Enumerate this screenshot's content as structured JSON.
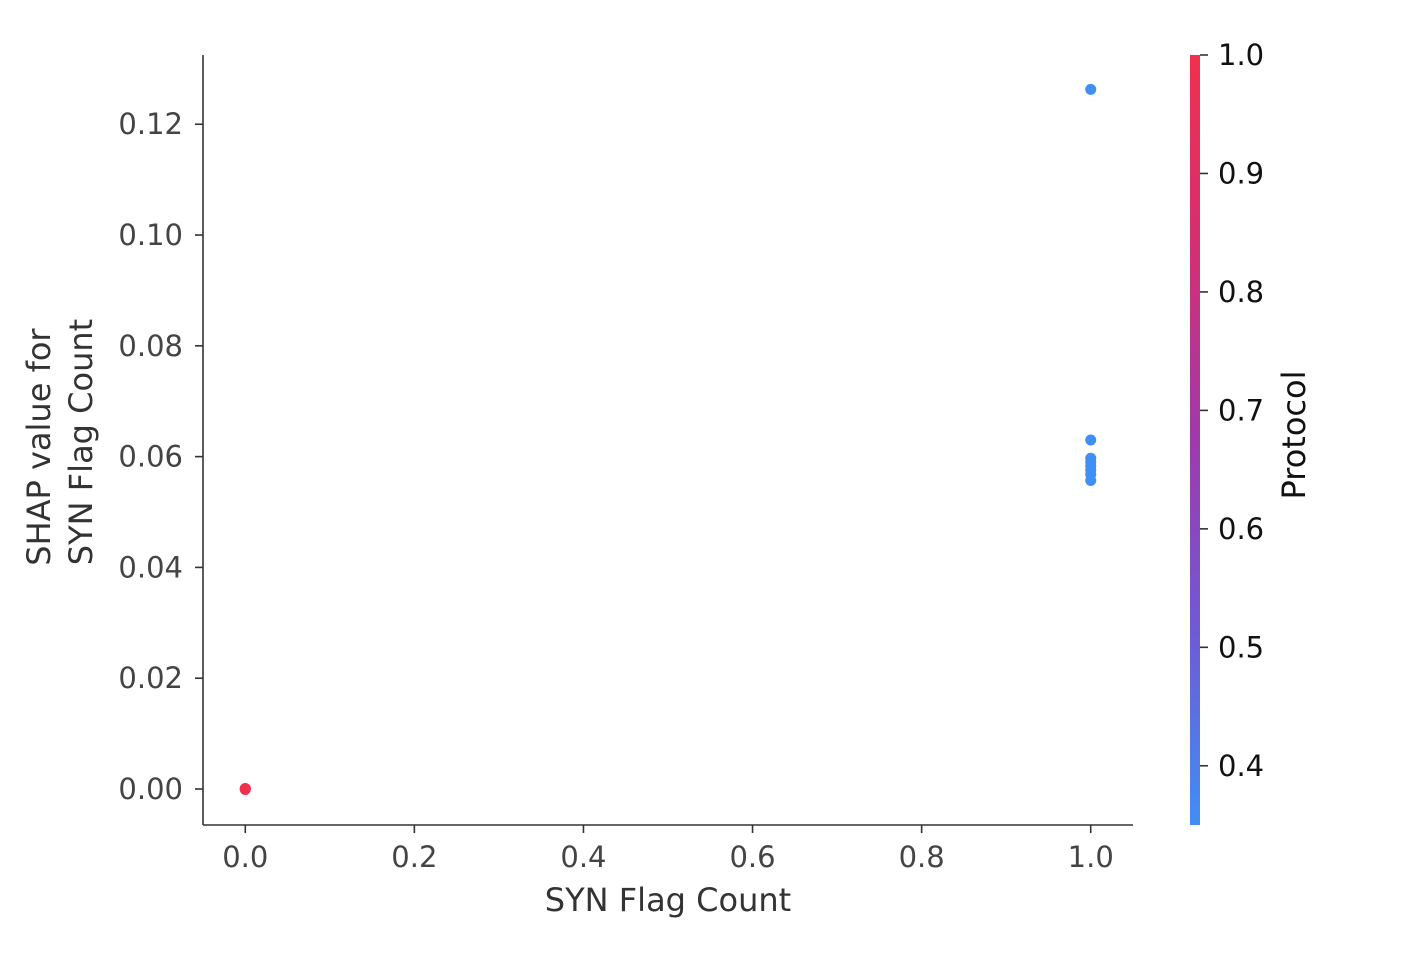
{
  "chart_data": {
    "type": "scatter",
    "xlabel": "SYN Flag Count",
    "ylabel_lines": [
      "SHAP value for",
      "SYN Flag Count"
    ],
    "xlim": [
      -0.05,
      1.05
    ],
    "ylim": [
      -0.0065,
      0.1325
    ],
    "xticks": [
      0.0,
      0.2,
      0.4,
      0.6,
      0.8,
      1.0
    ],
    "xtick_labels": [
      "0.0",
      "0.2",
      "0.4",
      "0.6",
      "0.8",
      "1.0"
    ],
    "yticks": [
      0.0,
      0.02,
      0.04,
      0.06,
      0.08,
      0.1,
      0.12
    ],
    "ytick_labels": [
      "0.00",
      "0.02",
      "0.04",
      "0.06",
      "0.08",
      "0.10",
      "0.12"
    ],
    "grid": false,
    "colorbar": {
      "label": "Protocol",
      "range": [
        0.35,
        1.0
      ],
      "ticks": [
        0.4,
        0.5,
        0.6,
        0.7,
        0.8,
        0.9,
        1.0
      ],
      "tick_labels": [
        "0.4",
        "0.5",
        "0.6",
        "0.7",
        "0.8",
        "0.9",
        "1.0"
      ],
      "colormap": [
        "#3f8ff5",
        "#6f5ad6",
        "#a039ad",
        "#d42f72",
        "#f0304e"
      ]
    },
    "points": [
      {
        "x": 1.0,
        "y": 0.1263,
        "c": 0.35
      },
      {
        "x": 1.0,
        "y": 0.063,
        "c": 0.35
      },
      {
        "x": 1.0,
        "y": 0.0597,
        "c": 0.35
      },
      {
        "x": 1.0,
        "y": 0.059,
        "c": 0.35
      },
      {
        "x": 1.0,
        "y": 0.0583,
        "c": 0.35
      },
      {
        "x": 1.0,
        "y": 0.0576,
        "c": 0.35
      },
      {
        "x": 1.0,
        "y": 0.0568,
        "c": 0.35
      },
      {
        "x": 1.0,
        "y": 0.0557,
        "c": 0.35
      },
      {
        "x": 0.0,
        "y": 0.0001,
        "c": 1.0
      },
      {
        "x": 0.0,
        "y": 0.0,
        "c": 1.0
      },
      {
        "x": 0.0,
        "y": -0.0001,
        "c": 1.0
      }
    ]
  }
}
